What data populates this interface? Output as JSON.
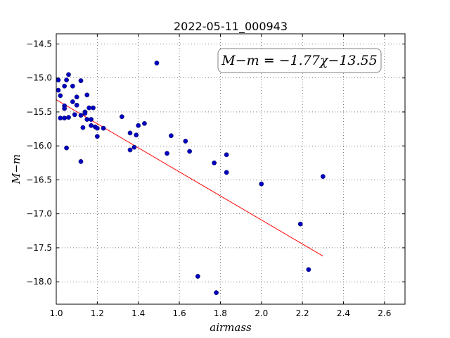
{
  "chart_data": {
    "type": "scatter",
    "title": "2022-05-11_000943",
    "xlabel": "airmass",
    "ylabel": "M−m",
    "annotation": "M−m = −1.77χ−13.55",
    "xlim": [
      1.0,
      2.7
    ],
    "ylim": [
      -18.33,
      -14.35
    ],
    "xticks": [
      1.0,
      1.2,
      1.4,
      1.6,
      1.8,
      2.0,
      2.2,
      2.4,
      2.6
    ],
    "xtick_labels": [
      "1.0",
      "1.2",
      "1.4",
      "1.6",
      "1.8",
      "2.0",
      "2.2",
      "2.4",
      "2.6"
    ],
    "yticks": [
      -14.5,
      -15.0,
      -15.5,
      -16.0,
      -16.5,
      -17.0,
      -17.5,
      -18.0
    ],
    "ytick_labels": [
      "−14.5",
      "−15.0",
      "−15.5",
      "−16.0",
      "−16.5",
      "−17.0",
      "−17.5",
      "−18.0"
    ],
    "grid": true,
    "colors": {
      "points": "#0000bf",
      "fit": "#ff0000"
    },
    "fit": {
      "slope": -1.77,
      "intercept": -13.55,
      "x_range": [
        1.0,
        2.3
      ]
    },
    "points": [
      [
        1.01,
        -15.03
      ],
      [
        1.01,
        -15.18
      ],
      [
        1.02,
        -15.59
      ],
      [
        1.02,
        -15.26
      ],
      [
        1.04,
        -15.59
      ],
      [
        1.04,
        -15.12
      ],
      [
        1.04,
        -15.41
      ],
      [
        1.04,
        -15.45
      ],
      [
        1.05,
        -16.03
      ],
      [
        1.05,
        -15.03
      ],
      [
        1.06,
        -14.95
      ],
      [
        1.06,
        -15.58
      ],
      [
        1.08,
        -15.12
      ],
      [
        1.08,
        -15.35
      ],
      [
        1.09,
        -15.54
      ],
      [
        1.1,
        -15.28
      ],
      [
        1.1,
        -15.4
      ],
      [
        1.12,
        -15.04
      ],
      [
        1.12,
        -16.23
      ],
      [
        1.12,
        -15.55
      ],
      [
        1.13,
        -15.73
      ],
      [
        1.14,
        -15.5
      ],
      [
        1.14,
        -15.52
      ],
      [
        1.15,
        -15.25
      ],
      [
        1.15,
        -15.61
      ],
      [
        1.16,
        -15.44
      ],
      [
        1.17,
        -15.61
      ],
      [
        1.17,
        -15.7
      ],
      [
        1.18,
        -15.44
      ],
      [
        1.19,
        -15.72
      ],
      [
        1.2,
        -15.74
      ],
      [
        1.2,
        -15.86
      ],
      [
        1.23,
        -15.74
      ],
      [
        1.32,
        -15.57
      ],
      [
        1.36,
        -15.81
      ],
      [
        1.36,
        -16.06
      ],
      [
        1.38,
        -16.02
      ],
      [
        1.39,
        -15.84
      ],
      [
        1.4,
        -15.7
      ],
      [
        1.43,
        -15.67
      ],
      [
        1.49,
        -14.78
      ],
      [
        1.54,
        -16.11
      ],
      [
        1.56,
        -15.85
      ],
      [
        1.63,
        -15.93
      ],
      [
        1.65,
        -16.08
      ],
      [
        1.69,
        -17.92
      ],
      [
        1.77,
        -16.25
      ],
      [
        1.78,
        -18.16
      ],
      [
        1.83,
        -16.13
      ],
      [
        1.83,
        -16.39
      ],
      [
        2.0,
        -16.56
      ],
      [
        2.19,
        -17.15
      ],
      [
        2.23,
        -17.82
      ],
      [
        2.3,
        -16.45
      ]
    ]
  }
}
